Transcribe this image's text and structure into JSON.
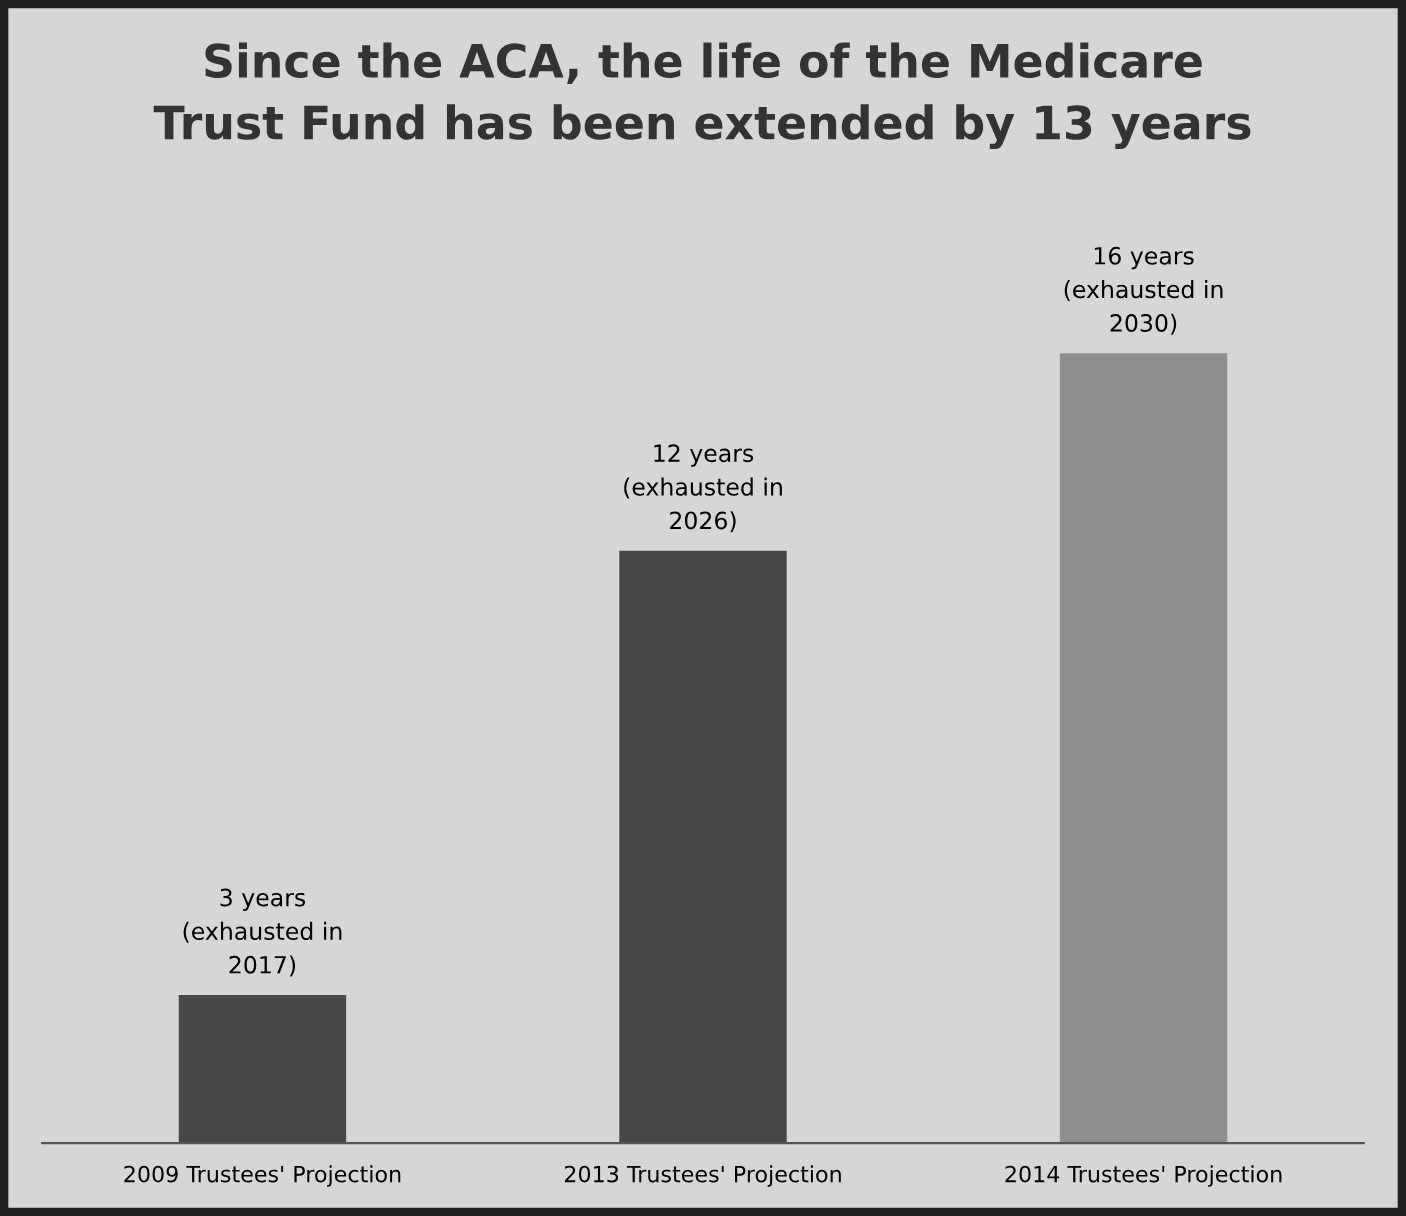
{
  "chart_data": {
    "type": "bar",
    "title": "Since the ACA, the life of the Medicare\nTrust Fund has been extended by 13 years",
    "categories": [
      "2009 Trustees' Projection",
      "2013 Trustees' Projection",
      "2014 Trustees' Projection"
    ],
    "values": [
      3,
      12,
      16
    ],
    "colors": [
      "#474747",
      "#474747",
      "#8f8f8f"
    ],
    "value_labels": [
      "3 years\n(exhausted in\n2017)",
      "12 years\n(exhausted in\n2026)",
      "16 years\n(exhausted in\n2030)"
    ],
    "grid": false,
    "legend": false
  }
}
